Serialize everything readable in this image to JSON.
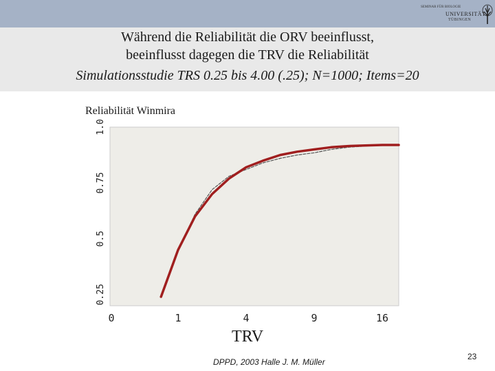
{
  "logo": {
    "line1": "SEMINAR FÜR BIOLOGIE",
    "line2": "UNIVERSITÄT",
    "line3": "TÜBINGEN",
    "icon": "tree-seal-icon"
  },
  "slide": {
    "title_line1": "Während die Reliabilität die ORV beeinflusst,",
    "title_line2": "beeinflusst dagegen die TRV die Reliabilität",
    "title_line3": "Simulationsstudie TRS 0.25 bis 4.00 (.25); N=1000; Items=20",
    "footer": "DPPD, 2003 Halle J. M. Müller",
    "page_number": "23"
  },
  "chart_data": {
    "type": "line",
    "ylabel": "Reliabilität Winmira",
    "xlabel": "TRV",
    "x_scale": "sqrt",
    "x_ticks": [
      "0",
      "1",
      "4",
      "9",
      "16"
    ],
    "y_ticks": [
      "0.25",
      "0.5",
      "0.75",
      "1.0"
    ],
    "xlim": [
      0,
      18
    ],
    "ylim": [
      0.2,
      1.0
    ],
    "grid": false,
    "series": [
      {
        "color": "#a01f1f",
        "style": "solid",
        "x": [
          0.5625,
          1.0,
          1.5625,
          2.25,
          3.0625,
          4.0,
          5.0625,
          6.25,
          7.5625,
          9.0,
          10.5625,
          12.25,
          14.0625,
          16.0,
          18.0
        ],
        "y": [
          0.24,
          0.45,
          0.6,
          0.7,
          0.77,
          0.82,
          0.85,
          0.875,
          0.89,
          0.9,
          0.91,
          0.915,
          0.918,
          0.92,
          0.92
        ]
      },
      {
        "color": "#555555",
        "style": "dashed",
        "x": [
          0.5625,
          1.0,
          1.5625,
          2.25,
          3.0625,
          4.0,
          5.0625,
          6.25,
          7.5625,
          9.0,
          10.5625,
          12.25,
          14.0625,
          16.0,
          18.0
        ],
        "y": [
          0.24,
          0.45,
          0.61,
          0.72,
          0.78,
          0.81,
          0.84,
          0.86,
          0.875,
          0.885,
          0.9,
          0.91,
          0.915,
          0.918,
          0.92
        ]
      }
    ]
  }
}
